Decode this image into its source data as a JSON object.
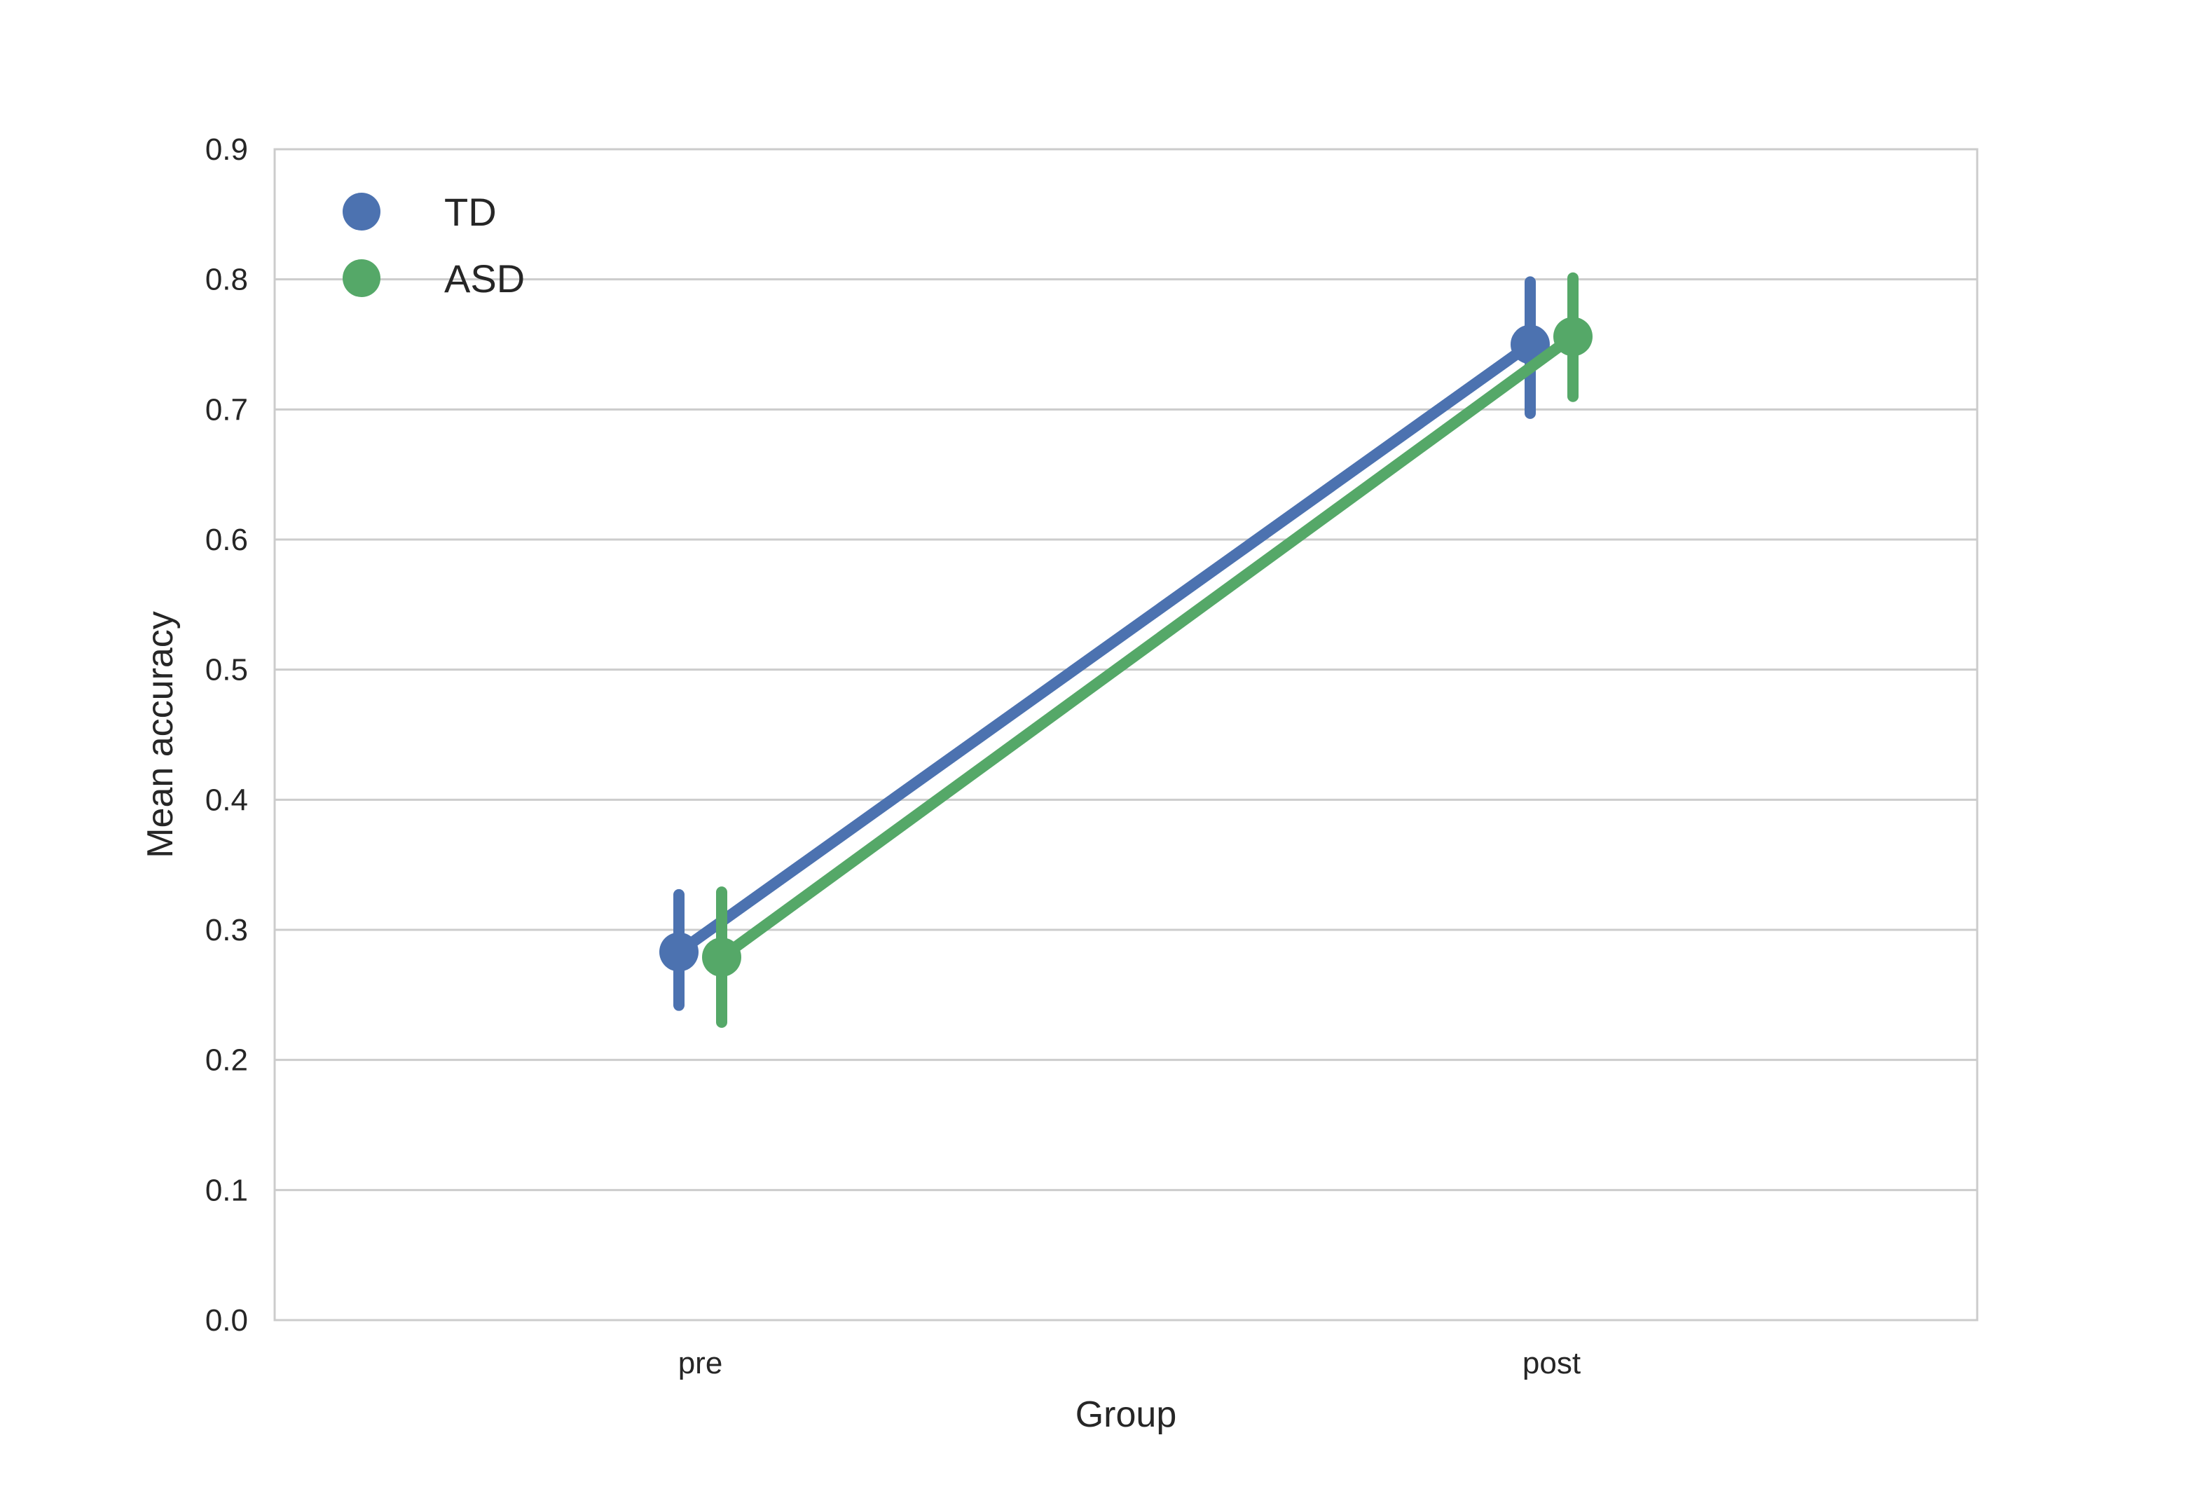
{
  "chart_data": {
    "type": "line",
    "title": "",
    "xlabel": "Group",
    "ylabel": "Mean accuracy",
    "categories": [
      "pre",
      "post"
    ],
    "ylim": [
      0.0,
      0.9
    ],
    "yticks": [
      0.0,
      0.1,
      0.2,
      0.3,
      0.4,
      0.5,
      0.6,
      0.7,
      0.8,
      0.9
    ],
    "ytick_labels": [
      "0.0",
      "0.1",
      "0.2",
      "0.3",
      "0.4",
      "0.5",
      "0.6",
      "0.7",
      "0.8",
      "0.9"
    ],
    "grid": "horizontal",
    "legend_position": "upper-left",
    "series": [
      {
        "name": "TD",
        "color": "#4c72b0",
        "values": [
          0.283,
          0.75
        ],
        "ci_low": [
          0.242,
          0.697
        ],
        "ci_high": [
          0.327,
          0.798
        ]
      },
      {
        "name": "ASD",
        "color": "#55a868",
        "values": [
          0.279,
          0.756
        ],
        "ci_low": [
          0.229,
          0.71
        ],
        "ci_high": [
          0.329,
          0.801
        ]
      }
    ]
  }
}
